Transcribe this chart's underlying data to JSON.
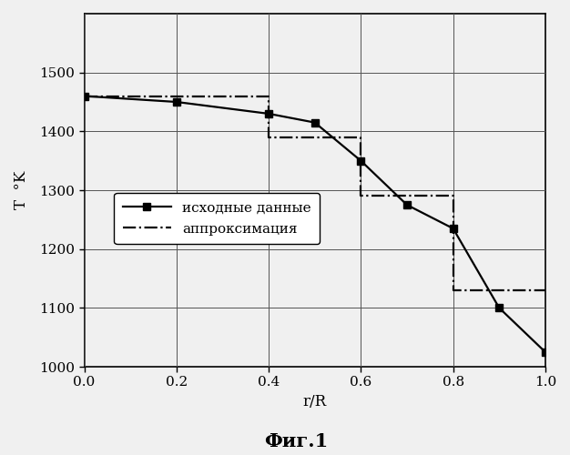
{
  "data_x": [
    0.0,
    0.2,
    0.4,
    0.5,
    0.6,
    0.7,
    0.8,
    0.9,
    1.0
  ],
  "data_y": [
    1460,
    1450,
    1430,
    1415,
    1350,
    1275,
    1235,
    1100,
    1025
  ],
  "approx_x": [
    0.0,
    0.4,
    0.4,
    0.6,
    0.6,
    0.8,
    0.8,
    1.0
  ],
  "approx_y": [
    1460,
    1460,
    1390,
    1390,
    1290,
    1290,
    1130,
    1130
  ],
  "xlabel": "r/R",
  "ylabel": "T  °K",
  "title_fig": "Фиг.1",
  "legend_data": "исходные данные",
  "legend_approx": "аппроксимация",
  "xlim": [
    0.0,
    1.0
  ],
  "ylim": [
    1000,
    1600
  ],
  "xticks": [
    0.0,
    0.2,
    0.4,
    0.6,
    0.8,
    1.0
  ],
  "yticks": [
    1000,
    1100,
    1200,
    1300,
    1400,
    1500
  ],
  "data_color": "#000000",
  "approx_color": "#000000",
  "bg_color": "#f0f0f0",
  "figsize": [
    6.26,
    5.0
  ],
  "dpi": 100
}
